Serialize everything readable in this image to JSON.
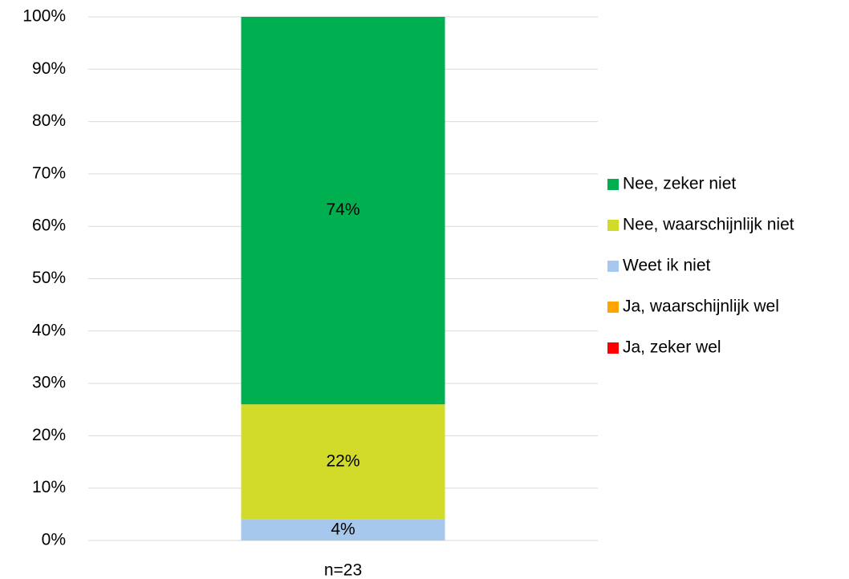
{
  "chart_data": {
    "type": "stacked_bar",
    "categories": [
      "n=23"
    ],
    "series": [
      {
        "name": "Ja, zeker wel",
        "color": "#ff0000",
        "values": [
          0
        ]
      },
      {
        "name": "Ja, waarschijnlijk wel",
        "color": "#ffa500",
        "values": [
          0
        ]
      },
      {
        "name": "Weet ik niet",
        "color": "#a6c8ec",
        "values": [
          4
        ],
        "value_labels": [
          "4%"
        ]
      },
      {
        "name": "Nee, waarschijnlijk niet",
        "color": "#d3db2a",
        "values": [
          22
        ],
        "value_labels": [
          "22%"
        ]
      },
      {
        "name": "Nee, zeker niet",
        "color": "#00b050",
        "values": [
          74
        ],
        "value_labels": [
          "74%"
        ]
      }
    ],
    "ylim": [
      0,
      100
    ],
    "yticks": [
      {
        "value": 0,
        "label": "0%"
      },
      {
        "value": 10,
        "label": "10%"
      },
      {
        "value": 20,
        "label": "20%"
      },
      {
        "value": 30,
        "label": "30%"
      },
      {
        "value": 40,
        "label": "40%"
      },
      {
        "value": 50,
        "label": "50%"
      },
      {
        "value": 60,
        "label": "60%"
      },
      {
        "value": 70,
        "label": "70%"
      },
      {
        "value": 80,
        "label": "80%"
      },
      {
        "value": 90,
        "label": "90%"
      },
      {
        "value": 100,
        "label": "100%"
      }
    ],
    "grid": true,
    "legend": "right"
  }
}
